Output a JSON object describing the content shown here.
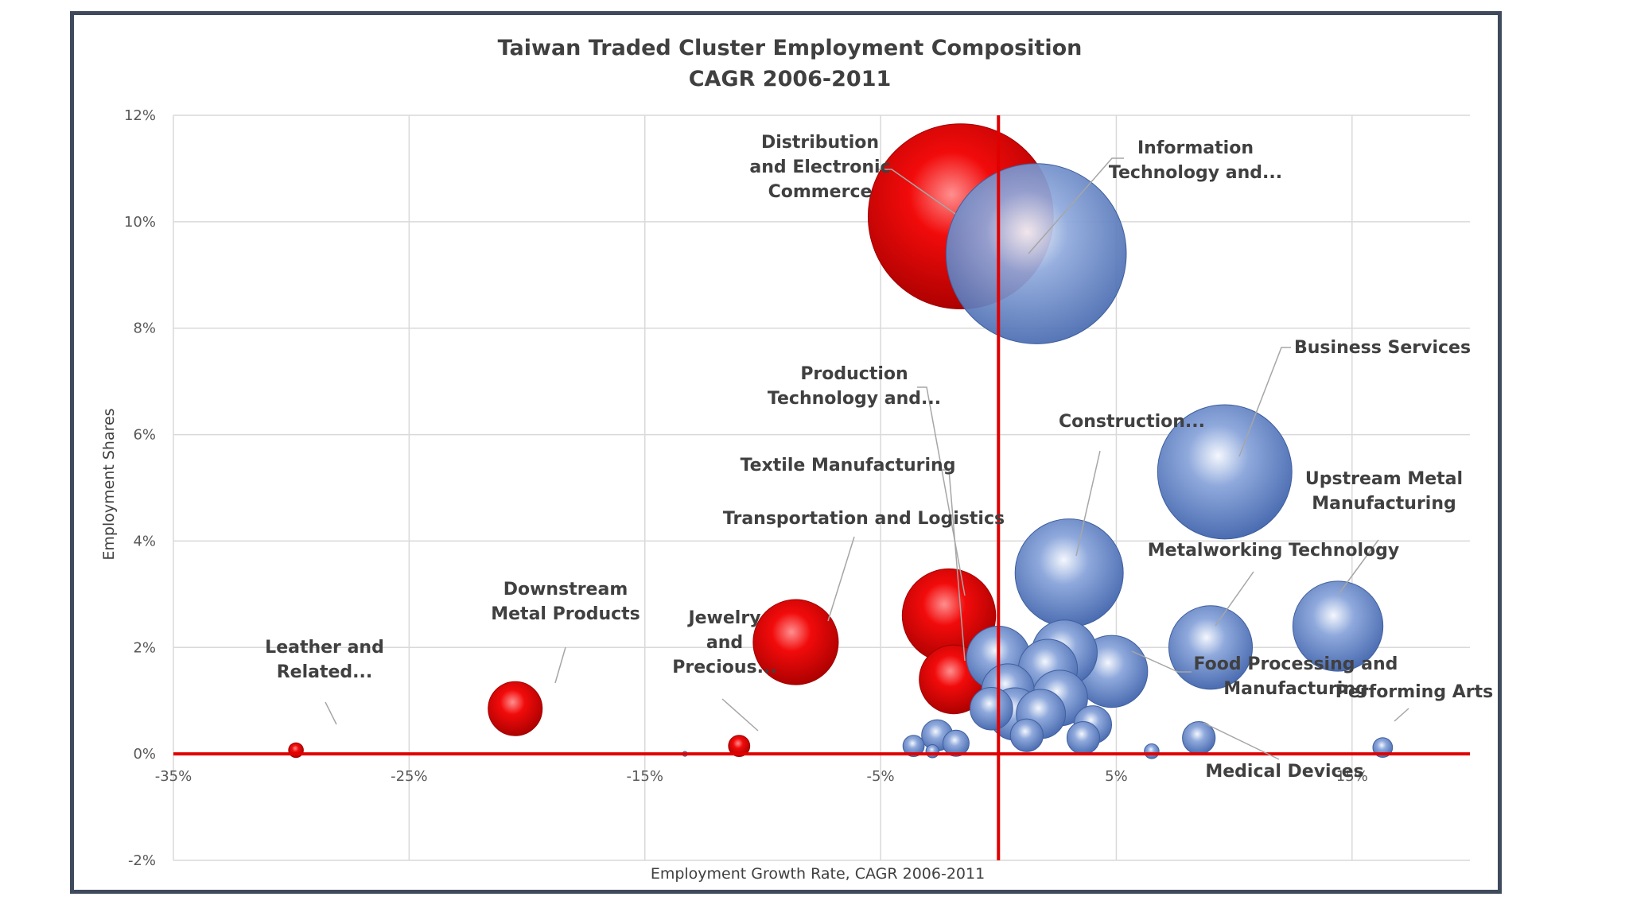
{
  "chart_data": {
    "type": "bubble",
    "title": "Taiwan Traded Cluster Employment Composition",
    "subtitle": "CAGR 2006-2011",
    "xlabel": "Employment Growth Rate, CAGR 2006-2011",
    "ylabel": "Employment Shares",
    "xlim": [
      -35,
      20
    ],
    "ylim": [
      -2,
      12
    ],
    "x_ticks": [
      "-35%",
      "-25%",
      "-15%",
      "-5%",
      "5%",
      "15%"
    ],
    "y_ticks": [
      "-2%",
      "0%",
      "2%",
      "4%",
      "6%",
      "8%",
      "10%",
      "12%"
    ],
    "grid": true,
    "colors": {
      "decline": "#e00000",
      "growth": "#6d8fce",
      "reference_line": "#e00000"
    },
    "points": [
      {
        "label": [
          "Distribution",
          "and Electronic",
          "Commerce"
        ],
        "x": -1.6,
        "y": 10.1,
        "size": 11.3,
        "group": "decline"
      },
      {
        "label": [
          "Information",
          "Technology and..."
        ],
        "x": 1.6,
        "y": 9.4,
        "size": 11.0,
        "group": "growth"
      },
      {
        "label": [
          "Business Services"
        ],
        "x": 9.6,
        "y": 5.3,
        "size": 8.2,
        "group": "growth"
      },
      {
        "label": [
          "Construction..."
        ],
        "x": 3.0,
        "y": 3.4,
        "size": 6.6,
        "group": "growth"
      },
      {
        "label": [
          "Upstream Metal",
          "Manufacturing"
        ],
        "x": 14.4,
        "y": 2.4,
        "size": 5.5,
        "group": "growth"
      },
      {
        "label": [
          "Metalworking Technology"
        ],
        "x": 9.0,
        "y": 2.0,
        "size": 5.1,
        "group": "growth"
      },
      {
        "label": [
          "Production",
          "Technology and..."
        ],
        "x": -2.1,
        "y": 2.6,
        "size": 5.7,
        "group": "decline"
      },
      {
        "label": [
          "Textile Manufacturing"
        ],
        "x": -1.9,
        "y": 1.4,
        "size": 4.2,
        "group": "decline"
      },
      {
        "label": [
          "Transportation  and Logistics"
        ],
        "x": -8.6,
        "y": 2.1,
        "size": 5.2,
        "group": "decline"
      },
      {
        "label": [
          "Downstream",
          "Metal Products"
        ],
        "x": -20.5,
        "y": 0.85,
        "size": 3.3,
        "group": "decline"
      },
      {
        "label": [
          "Leather and",
          "Related..."
        ],
        "x": -29.8,
        "y": 0.07,
        "size": 0.9,
        "group": "decline"
      },
      {
        "label": [
          "Jewelry",
          "and",
          "Precious..."
        ],
        "x": -11.0,
        "y": 0.15,
        "size": 1.3,
        "group": "decline"
      },
      {
        "label": [
          "Food Processing and",
          "Manufacturing"
        ],
        "x": 4.8,
        "y": 1.55,
        "size": 4.4,
        "group": "growth"
      },
      {
        "label": [
          "Medical Devices"
        ],
        "x": 8.5,
        "y": 0.3,
        "size": 2.0,
        "group": "growth"
      },
      {
        "label": [
          "Performing Arts"
        ],
        "x": 16.3,
        "y": 0.12,
        "size": 1.2,
        "group": "growth"
      },
      {
        "label": [],
        "x": 0.0,
        "y": 1.8,
        "size": 3.9,
        "group": "growth"
      },
      {
        "label": [],
        "x": 2.8,
        "y": 1.9,
        "size": 4.0,
        "group": "growth"
      },
      {
        "label": [],
        "x": 2.1,
        "y": 1.6,
        "size": 3.6,
        "group": "growth"
      },
      {
        "label": [],
        "x": 2.6,
        "y": 1.05,
        "size": 3.4,
        "group": "growth"
      },
      {
        "label": [],
        "x": 1.8,
        "y": 0.75,
        "size": 3.0,
        "group": "growth"
      },
      {
        "label": [],
        "x": 0.4,
        "y": 1.2,
        "size": 3.2,
        "group": "growth"
      },
      {
        "label": [],
        "x": 0.7,
        "y": 0.75,
        "size": 3.2,
        "group": "growth"
      },
      {
        "label": [],
        "x": -0.3,
        "y": 0.85,
        "size": 2.6,
        "group": "growth"
      },
      {
        "label": [],
        "x": 4.0,
        "y": 0.55,
        "size": 2.3,
        "group": "growth"
      },
      {
        "label": [],
        "x": 3.6,
        "y": 0.3,
        "size": 2.0,
        "group": "growth"
      },
      {
        "label": [],
        "x": 1.2,
        "y": 0.35,
        "size": 2.0,
        "group": "growth"
      },
      {
        "label": [],
        "x": -2.6,
        "y": 0.35,
        "size": 1.9,
        "group": "growth"
      },
      {
        "label": [],
        "x": -1.8,
        "y": 0.2,
        "size": 1.6,
        "group": "growth"
      },
      {
        "label": [],
        "x": -3.6,
        "y": 0.15,
        "size": 1.3,
        "group": "growth"
      },
      {
        "label": [],
        "x": -2.8,
        "y": 0.05,
        "size": 0.8,
        "group": "growth"
      },
      {
        "label": [],
        "x": 6.5,
        "y": 0.05,
        "size": 0.9,
        "group": "growth"
      },
      {
        "label": [],
        "x": -13.3,
        "y": 0.0,
        "size": 0.3,
        "group": "growth"
      }
    ]
  }
}
